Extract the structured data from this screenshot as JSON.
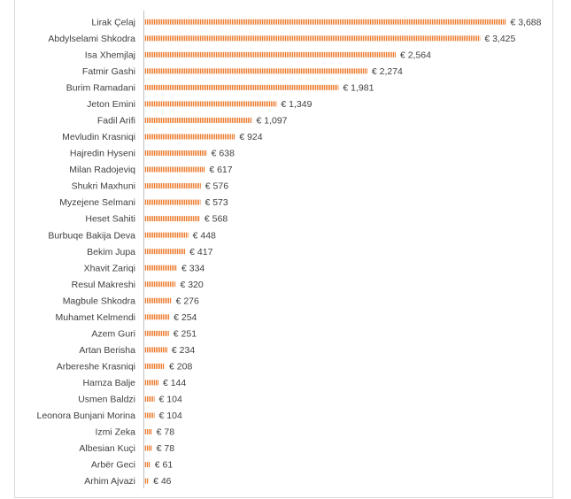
{
  "chart_data": {
    "type": "bar",
    "orientation": "horizontal",
    "title": "",
    "xlabel": "",
    "ylabel": "",
    "value_prefix": "€ ",
    "bar_color": "#ED7D31",
    "bar_pattern": "vertical-hatch",
    "xlim": [
      0,
      4000
    ],
    "grid": false,
    "legend": "none",
    "categories": [
      "Lirak Çelaj",
      "Abdylselami Shkodra",
      "Isa Xhemjlaj",
      "Fatmir Gashi",
      "Burim Ramadani",
      "Jeton Emini",
      "Fadil Arifi",
      "Mevludin Krasniqi",
      "Hajredin Hyseni",
      "Milan Radojeviq",
      "Shukri Maxhuni",
      "Myzejene Selmani",
      "Heset Sahiti",
      "Burbuqe Bakija Deva",
      "Bekim Jupa",
      "Xhavit Zariqi",
      "Resul Makreshi",
      "Magbule Shkodra",
      "Muhamet Kelmendi",
      "Azem Guri",
      "Artan Berisha",
      "Arbereshe Krasniqi",
      "Hamza Balje",
      "Usmen Baldzi",
      "Leonora Bunjani Morina",
      "Izmi Zeka",
      "Albesian Kuçi",
      "Arbër Geci",
      "Arhim Ajvazi"
    ],
    "values": [
      3688,
      3425,
      2564,
      2274,
      1981,
      1349,
      1097,
      924,
      638,
      617,
      576,
      573,
      568,
      448,
      417,
      334,
      320,
      276,
      254,
      251,
      234,
      208,
      144,
      104,
      104,
      78,
      78,
      61,
      46
    ],
    "value_labels": [
      "€ 3,688",
      "€ 3,425",
      "€ 2,564",
      "€ 2,274",
      "€ 1,981",
      "€ 1,349",
      "€ 1,097",
      "€ 924",
      "€ 638",
      "€ 617",
      "€ 576",
      "€ 573",
      "€ 568",
      "€ 448",
      "€ 417",
      "€ 334",
      "€ 320",
      "€ 276",
      "€ 254",
      "€ 251",
      "€ 234",
      "€ 208",
      "€ 144",
      "€ 104",
      "€ 104",
      "€ 78",
      "€ 78",
      "€ 61",
      "€ 46"
    ]
  }
}
